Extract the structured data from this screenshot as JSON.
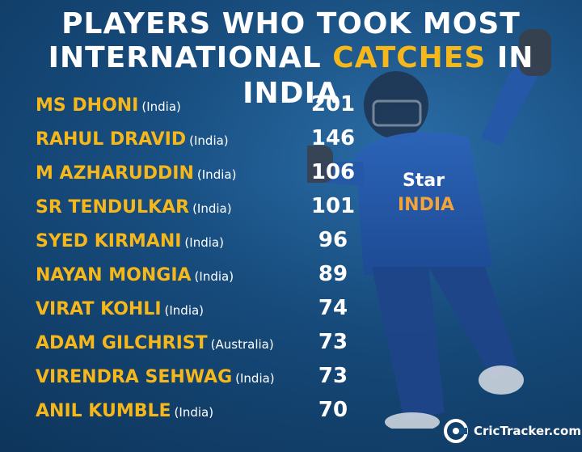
{
  "title": {
    "line1": "PLAYERS WHO TOOK MOST",
    "line2_before": "INTERNATIONAL ",
    "line2_accent": "CATCHES",
    "line2_after": " IN INDIA"
  },
  "colors": {
    "accent": "#f6b71b",
    "background": "#184f82",
    "text": "#ffffff"
  },
  "players": [
    {
      "name": "MS DHONI",
      "country": "(India)",
      "catches": "201"
    },
    {
      "name": "RAHUL DRAVID",
      "country": "(India)",
      "catches": "146"
    },
    {
      "name": "M AZHARUDDIN",
      "country": "(India)",
      "catches": "106"
    },
    {
      "name": "SR TENDULKAR",
      "country": "(India)",
      "catches": "101"
    },
    {
      "name": "SYED KIRMANI",
      "country": "(India)",
      "catches": "96"
    },
    {
      "name": "NAYAN MONGIA",
      "country": "(India)",
      "catches": "89"
    },
    {
      "name": "VIRAT KOHLI",
      "country": "(India)",
      "catches": "74"
    },
    {
      "name": "ADAM GILCHRIST",
      "country": "(Australia)",
      "catches": "73"
    },
    {
      "name": "VIRENDRA SEHWAG",
      "country": "(India)",
      "catches": "73"
    },
    {
      "name": "ANIL KUMBLE",
      "country": "(India)",
      "catches": "70"
    }
  ],
  "jersey": {
    "sponsor": "Star",
    "team": "INDIA"
  },
  "brand": {
    "name": "CricTracker.com",
    "icon": "crictracker-logo-icon"
  }
}
